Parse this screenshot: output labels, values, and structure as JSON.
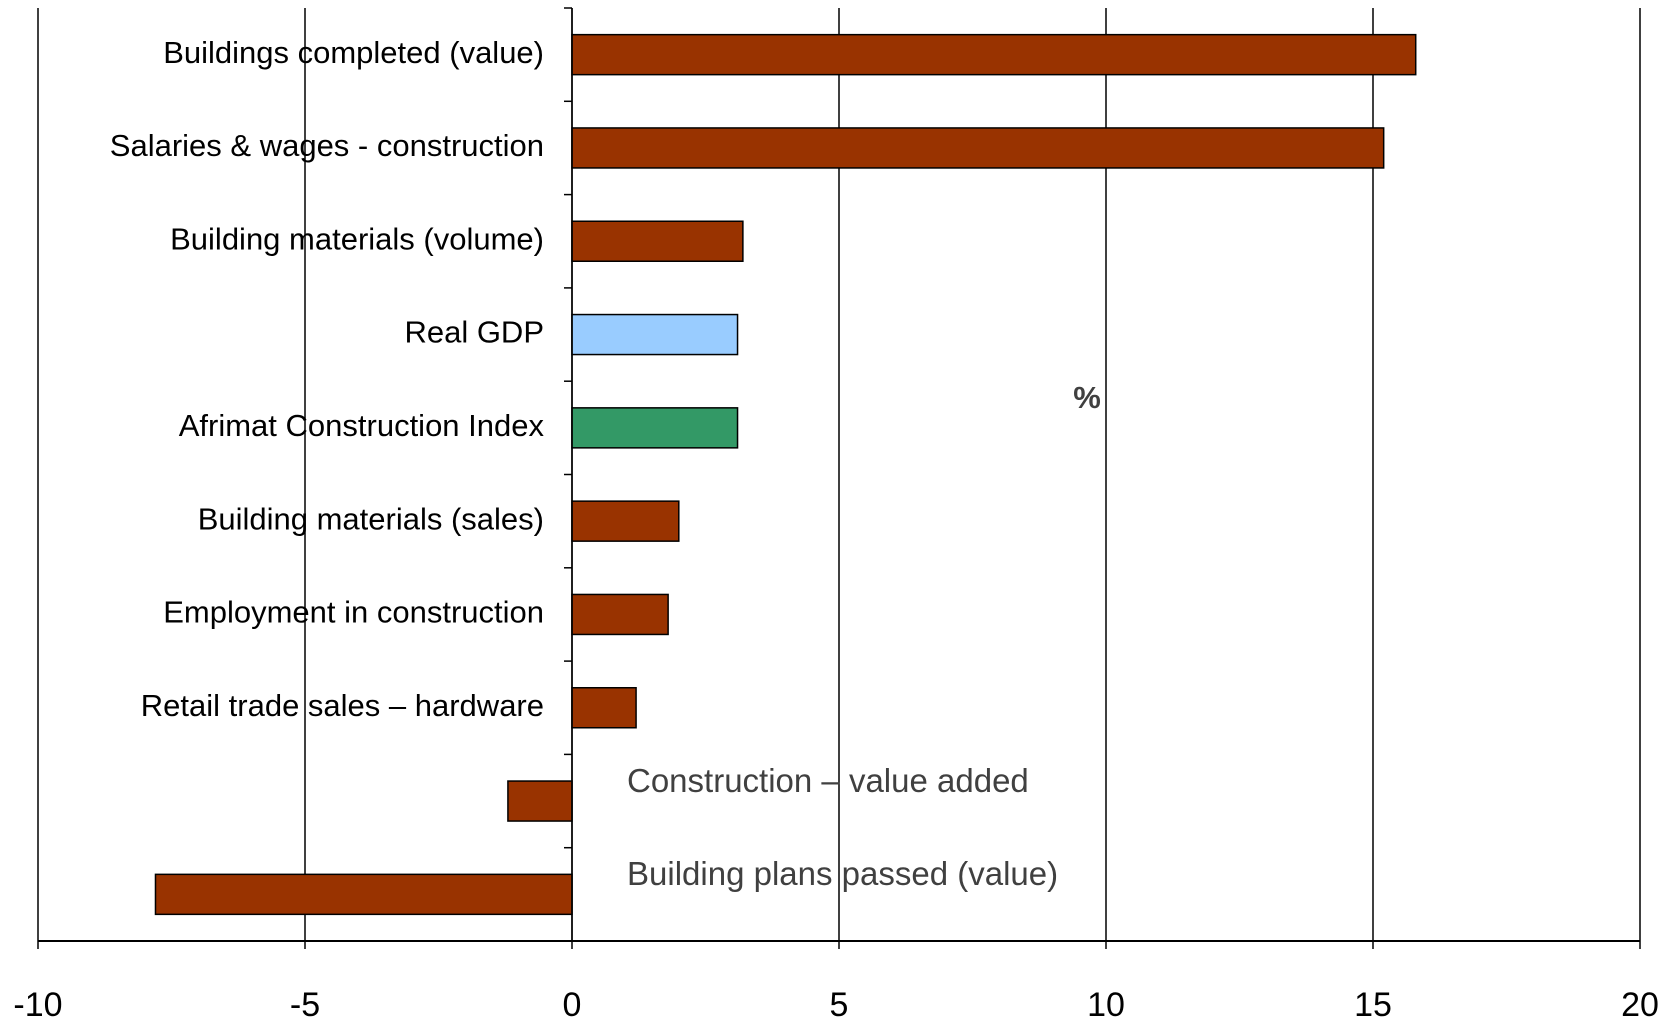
{
  "chart_data": {
    "type": "bar",
    "orientation": "horizontal",
    "x_label": "%",
    "categories": [
      "Buildings completed  (value)",
      "Salaries & wages - construction",
      "Building materials (volume)",
      "Real GDP",
      "Afrimat Construction Index",
      "Building materials (sales)",
      "Employment in construction",
      "Retail trade sales – hardware",
      "Construction – value added",
      "Building plans passed (value)"
    ],
    "values": [
      15.8,
      15.2,
      3.2,
      3.1,
      3.1,
      2.0,
      1.8,
      1.2,
      -1.2,
      -7.8
    ],
    "colors": [
      "#993300",
      "#993300",
      "#993300",
      "#99ccff",
      "#339966",
      "#993300",
      "#993300",
      "#993300",
      "#993300",
      "#993300"
    ],
    "xlim": [
      -10,
      20
    ],
    "xticks": [
      -10,
      -5,
      0,
      5,
      10,
      15,
      20
    ],
    "grid": true
  }
}
